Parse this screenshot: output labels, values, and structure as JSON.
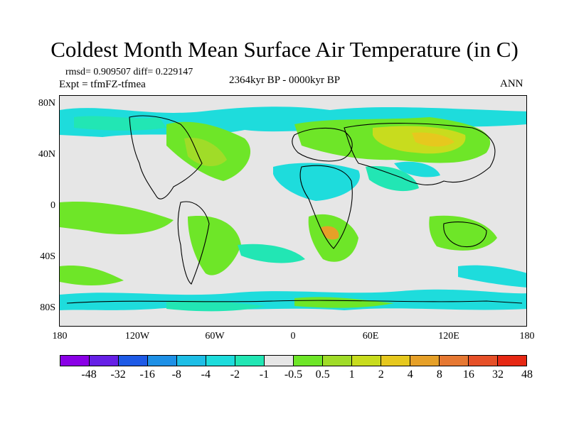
{
  "title": "Coldest Month Mean Surface Air Temperature (in C)",
  "stats": "rmsd= 0.909507 diff= 0.229147",
  "experiment": "Expt = tfmFZ-tfmea",
  "period": "2364kyr BP - 0000kyr BP",
  "season": "ANN",
  "lat_labels": [
    "80N",
    "40N",
    "0",
    "40S",
    "80S"
  ],
  "lon_labels": [
    "180",
    "120W",
    "60W",
    "0",
    "60E",
    "120E",
    "180"
  ],
  "legend": {
    "colors": [
      "#8a00e6",
      "#6620e6",
      "#1e5ae6",
      "#1e90e6",
      "#1ebee6",
      "#1edcdc",
      "#22e6b4",
      "#e6e6e6",
      "#6ee628",
      "#a0dc28",
      "#c8dc1e",
      "#e6c81e",
      "#e6a028",
      "#e67832",
      "#e65028",
      "#e62814"
    ],
    "labels": [
      "-48",
      "-32",
      "-16",
      "-8",
      "-4",
      "-2",
      "-1",
      "-0.5",
      "0.5",
      "1",
      "2",
      "4",
      "8",
      "16",
      "32",
      "48"
    ]
  },
  "palette": {
    "gray": "#e6e6e6",
    "cyan": "#1edcdc",
    "teal": "#22e6b4",
    "green": "#6ee628",
    "lime": "#a0dc28",
    "yellow": "#c8dc1e",
    "gold": "#e6c81e",
    "orange": "#e6a028",
    "coast": "#000000"
  }
}
